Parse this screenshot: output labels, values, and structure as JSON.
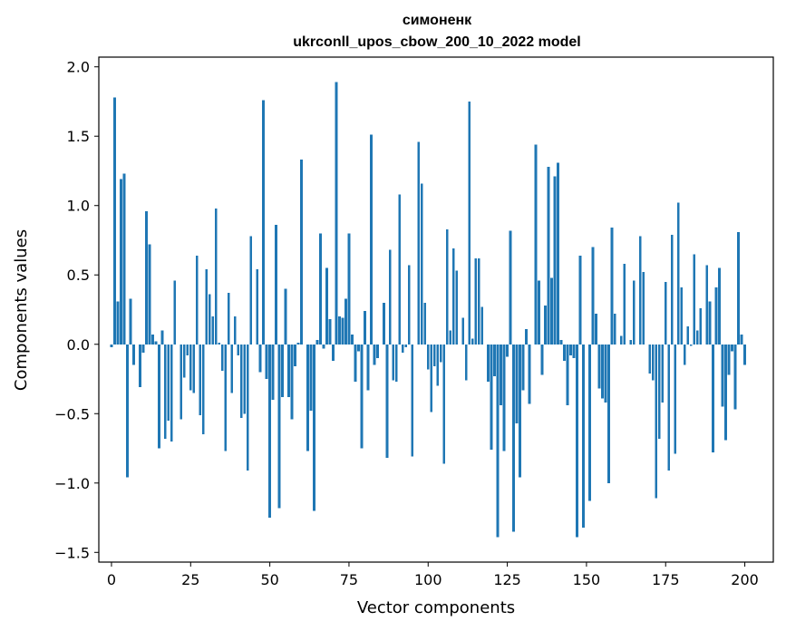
{
  "chart_data": {
    "type": "bar",
    "title_line1": "симоненк",
    "title_line2": "ukrconll_upos_cbow_200_10_2022 model",
    "xlabel": "Vector components",
    "ylabel": "Components values",
    "xlim": [
      -4,
      209
    ],
    "ylim": [
      -1.57,
      2.07
    ],
    "xticks": [
      0,
      25,
      50,
      75,
      100,
      125,
      150,
      175,
      200
    ],
    "xtick_labels": [
      "0",
      "25",
      "50",
      "75",
      "100",
      "125",
      "150",
      "175",
      "200"
    ],
    "yticks": [
      -1.5,
      -1.0,
      -0.5,
      0.0,
      0.5,
      1.0,
      1.5,
      2.0
    ],
    "ytick_labels": [
      "−1.5",
      "−1.0",
      "−0.5",
      "0.0",
      "0.5",
      "1.0",
      "1.5",
      "2.0"
    ],
    "bar_color": "#1f77b4",
    "values": [
      -0.02,
      1.78,
      0.31,
      1.19,
      1.23,
      -0.96,
      0.33,
      -0.15,
      0.0,
      -0.31,
      -0.06,
      0.96,
      0.72,
      0.07,
      0.02,
      -0.75,
      0.1,
      -0.68,
      -0.55,
      -0.7,
      0.46,
      0.0,
      -0.54,
      -0.24,
      -0.08,
      -0.33,
      -0.35,
      0.64,
      -0.51,
      -0.65,
      0.54,
      0.36,
      0.2,
      0.98,
      0.01,
      -0.19,
      -0.77,
      0.37,
      -0.35,
      0.2,
      -0.08,
      -0.53,
      -0.5,
      -0.91,
      0.78,
      0.0,
      0.54,
      -0.2,
      1.76,
      -0.25,
      -1.25,
      -0.4,
      0.86,
      -1.18,
      -0.38,
      0.4,
      -0.38,
      -0.54,
      -0.16,
      0.01,
      1.33,
      0.0,
      -0.77,
      -0.48,
      -1.2,
      0.03,
      0.8,
      -0.03,
      0.55,
      0.18,
      -0.12,
      1.89,
      0.2,
      0.19,
      0.33,
      0.8,
      0.07,
      -0.27,
      -0.05,
      -0.75,
      0.24,
      -0.33,
      1.51,
      -0.15,
      -0.1,
      0.0,
      0.3,
      -0.82,
      0.68,
      -0.26,
      -0.27,
      1.08,
      -0.06,
      -0.02,
      0.57,
      -0.81,
      0.0,
      1.46,
      1.16,
      0.3,
      -0.18,
      -0.49,
      -0.16,
      -0.3,
      -0.13,
      -0.86,
      0.83,
      0.1,
      0.69,
      0.53,
      0.0,
      0.19,
      -0.26,
      1.75,
      0.04,
      0.62,
      0.62,
      0.27,
      0.0,
      -0.27,
      -0.76,
      -0.23,
      -1.39,
      -0.44,
      -0.77,
      -0.09,
      0.82,
      -1.35,
      -0.57,
      -0.96,
      -0.33,
      0.11,
      -0.43,
      0.0,
      1.44,
      0.46,
      -0.22,
      0.28,
      1.28,
      0.48,
      1.21,
      1.31,
      0.03,
      -0.12,
      -0.44,
      -0.08,
      -0.1,
      -1.39,
      0.64,
      -1.32,
      0.0,
      -1.13,
      0.7,
      0.22,
      -0.32,
      -0.39,
      -0.42,
      -1.0,
      0.84,
      0.22,
      0.0,
      0.06,
      0.58,
      0.0,
      0.03,
      0.46,
      0.0,
      0.78,
      0.52,
      0.0,
      -0.21,
      -0.26,
      -1.11,
      -0.68,
      -0.42,
      0.45,
      -0.91,
      0.79,
      -0.79,
      1.02,
      0.41,
      -0.15,
      0.13,
      -0.01,
      0.65,
      0.1,
      0.26,
      0.0,
      0.57,
      0.31,
      -0.78,
      0.41,
      0.55,
      -0.45,
      -0.69,
      -0.22,
      -0.05,
      -0.47,
      0.81,
      0.07,
      -0.15
    ]
  }
}
